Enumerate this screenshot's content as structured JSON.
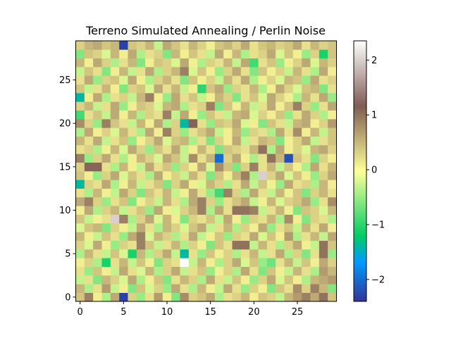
{
  "chart_data": {
    "type": "heatmap",
    "title": "Terreno Simulated Annealing / Perlin Noise",
    "xlabel": "",
    "ylabel": "",
    "rows": 30,
    "cols": 30,
    "origin": "lower",
    "xlim": [
      -0.5,
      29.5
    ],
    "ylim": [
      -0.5,
      29.5
    ],
    "x_ticks": [
      0,
      5,
      10,
      15,
      20,
      25
    ],
    "y_ticks": [
      0,
      5,
      10,
      15,
      20,
      25
    ],
    "colormap": "terrain",
    "color_range": [
      -2.4,
      2.35
    ],
    "colorbar_ticks": [
      -2,
      -1,
      0,
      1,
      2
    ],
    "colorbar_tick_labels": [
      "−2",
      "−1",
      "0",
      "1",
      "2"
    ],
    "values": [
      [
        0.4,
        0.9,
        0.1,
        -0.4,
        0.6,
        -2.3,
        0.3,
        -0.5,
        0.2,
        0.7,
        0.1,
        -0.6,
        0.8,
        0.3,
        0.4,
        0.6,
        -0.4,
        0.2,
        0.3,
        0.5,
        0.1,
        0.4,
        0.3,
        -0.3,
        0.5,
        0.7,
        0.9,
        0.6,
        1.0,
        0.4
      ],
      [
        0.5,
        -0.4,
        0.2,
        0.7,
        -0.3,
        0.1,
        -0.6,
        0.4,
        -0.2,
        0.3,
        -0.5,
        0.6,
        0.2,
        -0.4,
        0.5,
        0.1,
        -0.3,
        0.6,
        0.2,
        -0.5,
        0.3,
        0.1,
        -0.6,
        0.4,
        0.2,
        0.8,
        0.3,
        0.9,
        0.5,
        -0.6
      ],
      [
        -0.3,
        0.2,
        -0.6,
        0.5,
        0.3,
        -0.2,
        0.6,
        -0.4,
        0.1,
        0.4,
        -0.6,
        0.2,
        0.5,
        0.3,
        -0.4,
        0.6,
        0.2,
        -0.3,
        0.4,
        0.1,
        -0.5,
        0.3,
        0.6,
        -0.2,
        0.4,
        0.1,
        -0.4,
        0.5,
        0.6,
        0.7
      ],
      [
        0.2,
        -0.5,
        0.4,
        0.1,
        -0.3,
        0.6,
        0.2,
        -0.2,
        0.5,
        -0.4,
        0.3,
        0.6,
        -0.3,
        0.2,
        0.4,
        -0.5,
        0.1,
        0.3,
        -0.4,
        0.6,
        0.2,
        -0.6,
        0.4,
        0.1,
        -0.3,
        0.5,
        0.2,
        -0.4,
        0.7,
        0.5
      ],
      [
        0.1,
        0.3,
        -0.4,
        -1.1,
        0.2,
        0.5,
        -0.3,
        0.4,
        0.1,
        -0.6,
        0.3,
        0.2,
        2.35,
        -0.3,
        0.5,
        0.1,
        -0.4,
        0.3,
        0.6,
        -0.2,
        0.4,
        -0.5,
        -0.7,
        0.2,
        0.5,
        -0.3,
        0.4,
        0.1,
        0.6,
        0.3
      ],
      [
        -0.4,
        0.5,
        0.2,
        -0.3,
        0.4,
        -0.2,
        -1.1,
        0.5,
        -0.4,
        0.3,
        0.6,
        -0.3,
        -1.4,
        0.2,
        -0.5,
        0.4,
        0.1,
        0.3,
        -0.4,
        0.2,
        0.5,
        -0.3,
        0.2,
        0.6,
        -0.4,
        0.3,
        -0.6,
        0.2,
        1.0,
        -0.5
      ],
      [
        0.3,
        -0.2,
        0.6,
        0.1,
        -0.5,
        0.3,
        0.2,
        0.9,
        0.4,
        -0.3,
        0.2,
        0.5,
        -0.4,
        0.3,
        0.1,
        -0.6,
        0.4,
        0.2,
        1.0,
        1.0,
        -0.3,
        0.5,
        0.2,
        -0.4,
        0.3,
        0.6,
        0.1,
        -0.3,
        1.0,
        0.4
      ],
      [
        0.5,
        0.1,
        -0.3,
        0.4,
        0.2,
        -0.5,
        0.6,
        0.9,
        -0.2,
        0.5,
        0.3,
        -0.4,
        0.2,
        0.6,
        -0.3,
        0.1,
        0.4,
        -0.5,
        0.3,
        0.2,
        0.6,
        -0.2,
        0.4,
        0.1,
        0.7,
        -0.4,
        0.2,
        0.5,
        -0.3,
        0.6
      ],
      [
        -0.2,
        0.4,
        0.5,
        -0.6,
        0.3,
        0.1,
        -0.3,
        0.6,
        0.2,
        -0.4,
        0.5,
        0.3,
        -0.2,
        0.4,
        0.6,
        -0.3,
        0.2,
        0.5,
        -0.4,
        0.3,
        0.1,
        0.6,
        -0.5,
        0.2,
        0.4,
        -0.3,
        0.5,
        0.2,
        0.6,
        0.1
      ],
      [
        0.4,
        -0.3,
        0.1,
        0.2,
        2.0,
        0.9,
        -0.4,
        0.3,
        0.6,
        -0.2,
        0.5,
        0.1,
        -0.6,
        0.3,
        0.2,
        0.4,
        -0.3,
        0.6,
        0.1,
        -0.5,
        0.3,
        0.2,
        0.5,
        -0.4,
        0.8,
        0.1,
        -0.6,
        0.3,
        0.2,
        -0.4
      ],
      [
        0.1,
        0.6,
        -0.4,
        0.3,
        0.5,
        -0.3,
        0.2,
        0.4,
        -0.5,
        0.6,
        0.1,
        -0.2,
        0.3,
        0.5,
        0.9,
        -0.4,
        0.6,
        0.2,
        1.0,
        1.0,
        0.9,
        -0.3,
        0.2,
        0.5,
        0.1,
        -0.6,
        0.4,
        0.3,
        -0.2,
        0.5
      ],
      [
        0.6,
        0.9,
        0.3,
        -0.5,
        0.2,
        0.4,
        -0.6,
        0.1,
        0.3,
        -0.3,
        0.5,
        0.2,
        -0.4,
        0.6,
        0.9,
        0.3,
        -0.5,
        0.2,
        0.4,
        0.6,
        -0.3,
        0.1,
        0.5,
        -0.2,
        0.3,
        0.4,
        0.6,
        -0.5,
        0.2,
        0.8
      ],
      [
        0.2,
        -0.4,
        0.5,
        0.1,
        -0.3,
        0.6,
        0.3,
        -0.6,
        0.4,
        0.2,
        0.5,
        -0.3,
        0.1,
        0.6,
        0.2,
        -0.5,
        -0.9,
        0.9,
        0.3,
        -0.4,
        0.6,
        0.2,
        -0.3,
        0.5,
        0.1,
        0.4,
        -0.6,
        0.3,
        0.5,
        0.2
      ],
      [
        -1.4,
        0.3,
        0.2,
        0.6,
        -0.4,
        0.1,
        0.5,
        -0.3,
        0.2,
        0.4,
        -0.6,
        0.3,
        0.6,
        0.1,
        -0.2,
        0.5,
        0.3,
        -0.4,
        0.2,
        0.6,
        -0.3,
        0.4,
        0.1,
        -0.5,
        0.6,
        0.2,
        0.3,
        -0.4,
        0.5,
        0.1
      ],
      [
        0.4,
        0.1,
        -0.5,
        0.3,
        0.6,
        -0.2,
        0.4,
        0.2,
        -0.4,
        0.6,
        0.1,
        0.3,
        -0.3,
        0.5,
        0.2,
        -0.6,
        0.4,
        0.1,
        0.5,
        0.9,
        -0.4,
        2.0,
        0.3,
        0.6,
        -0.2,
        0.4,
        0.1,
        -0.5,
        0.3,
        0.6
      ],
      [
        0.3,
        1.1,
        1.1,
        0.2,
        -0.4,
        0.5,
        0.1,
        -0.3,
        0.6,
        0.2,
        0.4,
        -0.5,
        0.3,
        0.1,
        0.6,
        -0.2,
        0.8,
        0.4,
        -0.6,
        0.3,
        0.9,
        0.2,
        0.5,
        -0.3,
        0.4,
        0.1,
        -0.4,
        0.6,
        0.2,
        0.5
      ],
      [
        0.9,
        -0.5,
        0.3,
        0.6,
        0.2,
        -0.4,
        0.1,
        0.5,
        0.3,
        -0.2,
        0.6,
        0.4,
        -0.3,
        0.8,
        0.2,
        0.5,
        -2.0,
        0.3,
        0.6,
        0.1,
        -0.4,
        0.2,
        1.0,
        0.5,
        -2.2,
        0.4,
        0.2,
        -0.6,
        0.3,
        0.1
      ],
      [
        0.2,
        0.3,
        -0.4,
        0.1,
        0.5,
        -0.2,
        0.6,
        0.3,
        -0.5,
        0.4,
        0.2,
        0.6,
        -0.3,
        0.1,
        0.5,
        0.2,
        -0.6,
        0.4,
        0.3,
        0.2,
        0.5,
        1.0,
        -0.4,
        0.6,
        0.1,
        0.3,
        -0.2,
        0.5,
        0.6,
        0.3
      ],
      [
        0.5,
        0.2,
        0.6,
        -0.3,
        0.2,
        0.4,
        -0.5,
        0.1,
        0.3,
        0.6,
        -0.2,
        0.4,
        0.5,
        -0.4,
        0.2,
        -0.6,
        0.3,
        0.1,
        0.6,
        -0.3,
        0.2,
        0.5,
        0.4,
        -0.6,
        0.1,
        0.3,
        0.6,
        -0.3,
        0.2,
        0.4
      ],
      [
        -0.4,
        0.6,
        0.1,
        0.3,
        -0.2,
        0.5,
        0.2,
        -0.4,
        0.6,
        0.1,
        0.9,
        0.3,
        -0.5,
        0.2,
        0.4,
        0.6,
        -0.3,
        0.1,
        0.5,
        -0.5,
        0.3,
        0.2,
        -0.4,
        0.6,
        0.2,
        0.8,
        0.1,
        0.5,
        -0.3,
        0.4
      ],
      [
        0.8,
        0.3,
        -0.5,
        0.9,
        0.4,
        0.2,
        -0.3,
        0.5,
        0.1,
        0.6,
        -0.4,
        0.3,
        -1.4,
        1.2,
        0.2,
        -0.5,
        0.4,
        0.3,
        0.6,
        -0.2,
        0.1,
        -0.6,
        0.4,
        0.2,
        -0.3,
        0.5,
        0.6,
        0.1,
        0.3,
        0.7
      ],
      [
        -0.9,
        0.2,
        0.4,
        -0.3,
        0.6,
        0.1,
        0.5,
        -0.4,
        0.3,
        0.2,
        0.9,
        -0.3,
        0.6,
        0.1,
        -0.5,
        0.4,
        0.2,
        -0.3,
        0.5,
        0.6,
        -0.2,
        0.3,
        0.1,
        0.4,
        -0.5,
        0.2,
        0.6,
        0.3,
        -0.4,
        0.1
      ],
      [
        0.3,
        0.5,
        -0.3,
        0.2,
        0.6,
        -0.5,
        0.1,
        0.4,
        0.3,
        -0.2,
        0.5,
        0.6,
        -0.4,
        0.2,
        0.3,
        0.9,
        -0.6,
        0.4,
        0.1,
        0.5,
        -0.3,
        0.2,
        0.6,
        0.1,
        0.4,
        0.9,
        0.3,
        -0.5,
        0.2,
        0.6
      ],
      [
        -1.4,
        0.1,
        0.6,
        -0.4,
        0.2,
        0.3,
        -0.3,
        0.5,
        0.9,
        0.1,
        -0.5,
        0.6,
        0.2,
        0.4,
        -0.3,
        0.1,
        0.5,
        0.3,
        -0.6,
        0.2,
        0.4,
        -0.2,
        0.6,
        0.3,
        0.1,
        -0.4,
        0.5,
        0.2,
        0.6,
        -0.5
      ],
      [
        0.4,
        -0.3,
        0.2,
        0.5,
        0.1,
        -0.6,
        0.3,
        0.4,
        -0.2,
        0.6,
        0.2,
        0.5,
        -0.3,
        0.1,
        -1.0,
        0.4,
        0.6,
        -0.5,
        0.3,
        0.2,
        0.5,
        -0.4,
        0.1,
        0.6,
        0.3,
        -0.2,
        0.4,
        0.5,
        -0.6,
        0.2
      ],
      [
        0.2,
        0.6,
        -0.5,
        0.3,
        0.4,
        -0.2,
        0.6,
        0.1,
        -0.4,
        0.3,
        0.5,
        0.2,
        -0.6,
        0.4,
        0.1,
        0.3,
        -0.3,
        0.5,
        0.2,
        0.6,
        -0.4,
        0.1,
        0.3,
        -0.2,
        0.5,
        0.4,
        -0.5,
        0.6,
        0.2,
        0.3
      ],
      [
        -0.3,
        0.4,
        0.2,
        -0.6,
        0.1,
        0.5,
        -0.3,
        0.2,
        0.6,
        -0.4,
        0.3,
        0.5,
        0.9,
        -0.2,
        0.4,
        0.1,
        -0.5,
        0.3,
        0.6,
        0.2,
        -0.6,
        0.4,
        0.1,
        0.3,
        -0.3,
        0.5,
        0.2,
        -0.4,
        0.6,
        0.1
      ],
      [
        0.5,
        0.1,
        0.6,
        0.3,
        -0.4,
        0.2,
        0.5,
        -0.6,
        0.1,
        0.4,
        0.3,
        -0.2,
        0.6,
        0.1,
        -0.4,
        0.3,
        0.2,
        0.5,
        -0.3,
        0.6,
        -0.9,
        0.2,
        0.4,
        -0.5,
        0.1,
        0.3,
        0.6,
        -0.2,
        0.5,
        0.3
      ],
      [
        -0.6,
        0.4,
        0.3,
        -0.2,
        0.5,
        0.1,
        0.6,
        -0.4,
        0.2,
        0.3,
        -0.6,
        0.5,
        0.1,
        0.4,
        0.2,
        -0.3,
        0.6,
        0.1,
        0.5,
        -0.4,
        0.2,
        0.3,
        0.6,
        -0.2,
        0.4,
        0.1,
        -0.5,
        0.3,
        -1.1,
        0.4
      ],
      [
        0.3,
        0.5,
        0.6,
        0.4,
        0.5,
        -2.3,
        0.4,
        0.3,
        0.5,
        -0.3,
        0.6,
        0.4,
        0.2,
        0.5,
        0.3,
        0.1,
        0.4,
        0.5,
        0.3,
        0.6,
        0.2,
        0.4,
        0.5,
        0.3,
        0.4,
        0.6,
        0.2,
        0.5,
        0.3,
        0.4
      ]
    ]
  }
}
